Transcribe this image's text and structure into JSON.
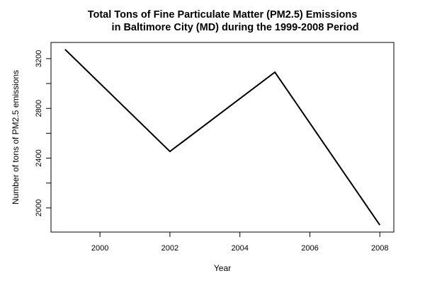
{
  "chart_data": {
    "type": "line",
    "title": [
      "Total Tons of Fine Particulate Matter (PM2.5) Emissions",
      "in Baltimore City (MD) during the 1999-2008 Period"
    ],
    "xlabel": "Year",
    "ylabel": "Number of tons of PM2.5 emissions",
    "x": [
      1999,
      2002,
      2005,
      2008
    ],
    "series": [
      {
        "values": [
          3274.18,
          2453.92,
          3091.35,
          1862.28
        ]
      }
    ],
    "xlim": [
      1998.6,
      2008.4
    ],
    "ylim": [
      1806,
      3330
    ],
    "xticks": [
      2000,
      2002,
      2004,
      2006,
      2008
    ],
    "xtick_labels": [
      "2000",
      "2002",
      "2004",
      "2006",
      "2008"
    ],
    "yticks": [
      2000,
      2200,
      2400,
      2600,
      2800,
      3000,
      3200
    ],
    "ytick_labels": [
      "2000",
      "",
      "2400",
      "",
      "2800",
      "",
      "3200"
    ],
    "grid": false,
    "line_color": "#000000"
  }
}
